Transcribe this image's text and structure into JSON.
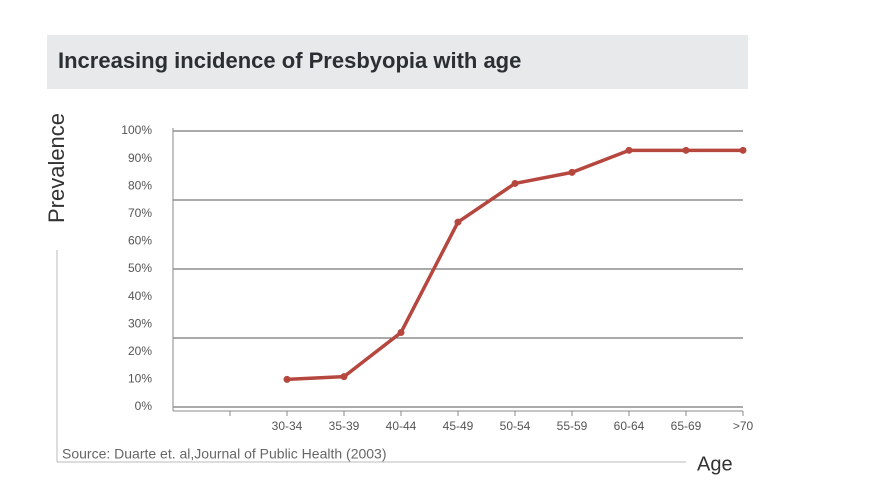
{
  "chart_data": {
    "type": "line",
    "title": "Increasing incidence of Presbyopia with age",
    "y_label": "Prevalence",
    "x_label": "Age",
    "source": "Source: Duarte et. al,Journal of Public Health (2003)",
    "categories": [
      null,
      "30-34",
      "35-39",
      "40-44",
      "45-49",
      "50-54",
      "55-59",
      "60-64",
      "65-69",
      ">70"
    ],
    "series": [
      {
        "name": "Prevalence",
        "color": "#b5473f",
        "values": [
          null,
          10,
          11,
          27,
          67,
          81,
          85,
          93,
          93,
          93
        ]
      }
    ],
    "ylim": [
      0,
      100
    ],
    "yticks": [
      {
        "value": 0,
        "label": "0%"
      },
      {
        "value": 10,
        "label": "10%"
      },
      {
        "value": 20,
        "label": "20%"
      },
      {
        "value": 30,
        "label": "30%"
      },
      {
        "value": 40,
        "label": "40%"
      },
      {
        "value": 50,
        "label": "50%"
      },
      {
        "value": 60,
        "label": "60%"
      },
      {
        "value": 70,
        "label": "70%"
      },
      {
        "value": 80,
        "label": "80%"
      },
      {
        "value": 90,
        "label": "90%"
      },
      {
        "value": 100,
        "label": "100%"
      }
    ],
    "ygrid": [
      0,
      25,
      50,
      75,
      100
    ]
  }
}
